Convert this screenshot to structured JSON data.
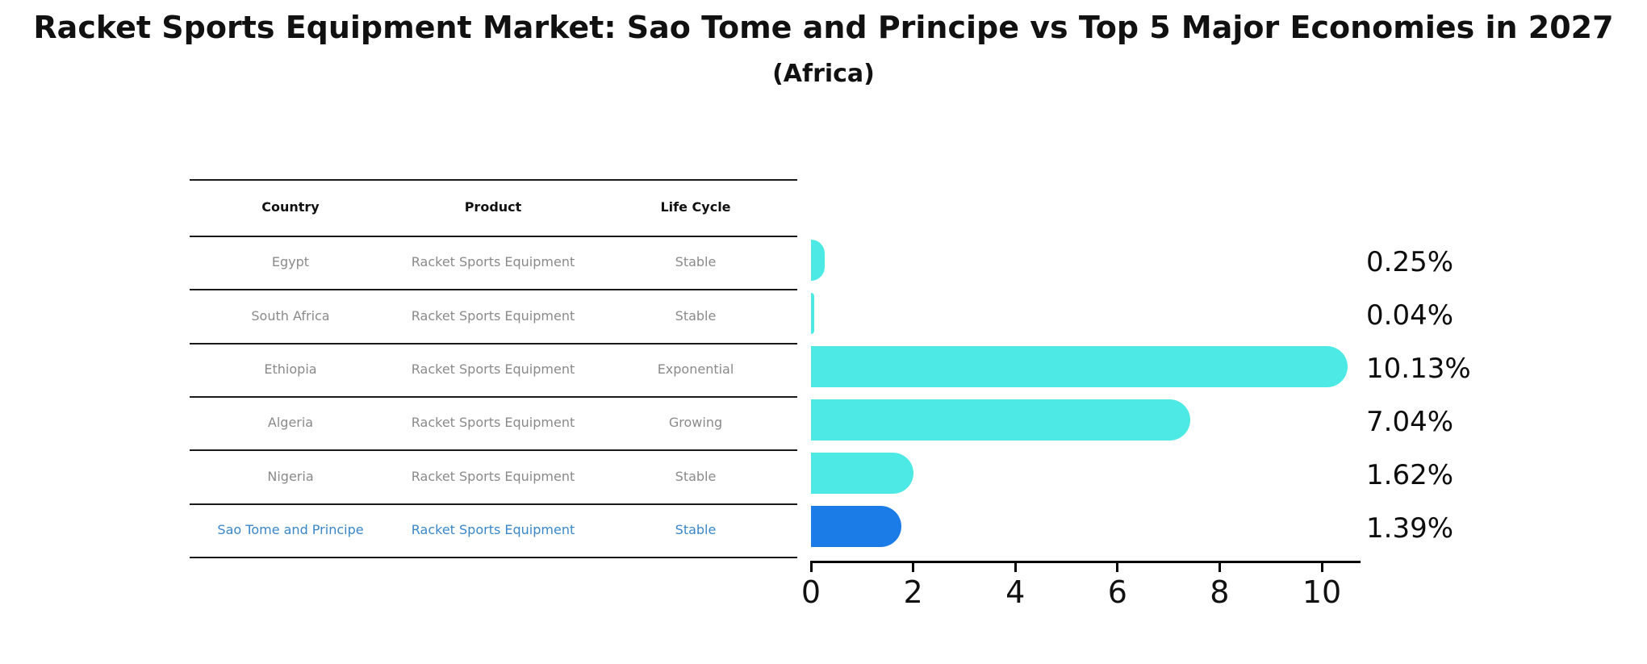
{
  "title": "Racket Sports Equipment Market: Sao Tome and Principe vs Top 5 Major Economies in 2027",
  "subtitle": "(Africa)",
  "table": {
    "headers": [
      "Country",
      "Product",
      "Life Cycle"
    ],
    "rows": [
      {
        "country": "Egypt",
        "product": "Racket Sports Equipment",
        "life_cycle": "Stable",
        "highlighted": false
      },
      {
        "country": "South Africa",
        "product": "Racket Sports Equipment",
        "life_cycle": "Stable",
        "highlighted": false
      },
      {
        "country": "Ethiopia",
        "product": "Racket Sports Equipment",
        "life_cycle": "Exponential",
        "highlighted": false
      },
      {
        "country": "Algeria",
        "product": "Racket Sports Equipment",
        "life_cycle": "Growing",
        "highlighted": false
      },
      {
        "country": "Nigeria",
        "product": "Racket Sports Equipment",
        "life_cycle": "Stable",
        "highlighted": false
      },
      {
        "country": "Sao Tome and Principe",
        "product": "Racket Sports Equipment",
        "life_cycle": "Stable",
        "highlighted": true
      }
    ]
  },
  "chart_data": {
    "type": "bar",
    "orientation": "horizontal",
    "title": "Racket Sports Equipment Market: Sao Tome and Principe vs Top 5 Major Economies in 2027 (Africa)",
    "categories": [
      "Egypt",
      "South Africa",
      "Ethiopia",
      "Algeria",
      "Nigeria",
      "Sao Tome and Principe"
    ],
    "values": [
      0.25,
      0.04,
      10.13,
      7.04,
      1.62,
      1.39
    ],
    "value_labels": [
      "0.25%",
      "0.04%",
      "10.13%",
      "7.04%",
      "1.62%",
      "1.39%"
    ],
    "xlabel": "",
    "ylabel": "",
    "xlim": [
      0,
      10.8
    ],
    "xticks": [
      0,
      2,
      4,
      6,
      8,
      10
    ],
    "grid": false,
    "legend": false,
    "bar_color": "#4DE9E4",
    "highlight_bar_color": "#1B7CE8",
    "highlight_index": 5,
    "highlight_bar_edge": "dashed"
  },
  "colors": {
    "header_text": "#111111",
    "row_text": "#8A8A8A",
    "highlight_text": "#3987C9",
    "table_line": "#1A1A1A",
    "axis": "#000000"
  }
}
